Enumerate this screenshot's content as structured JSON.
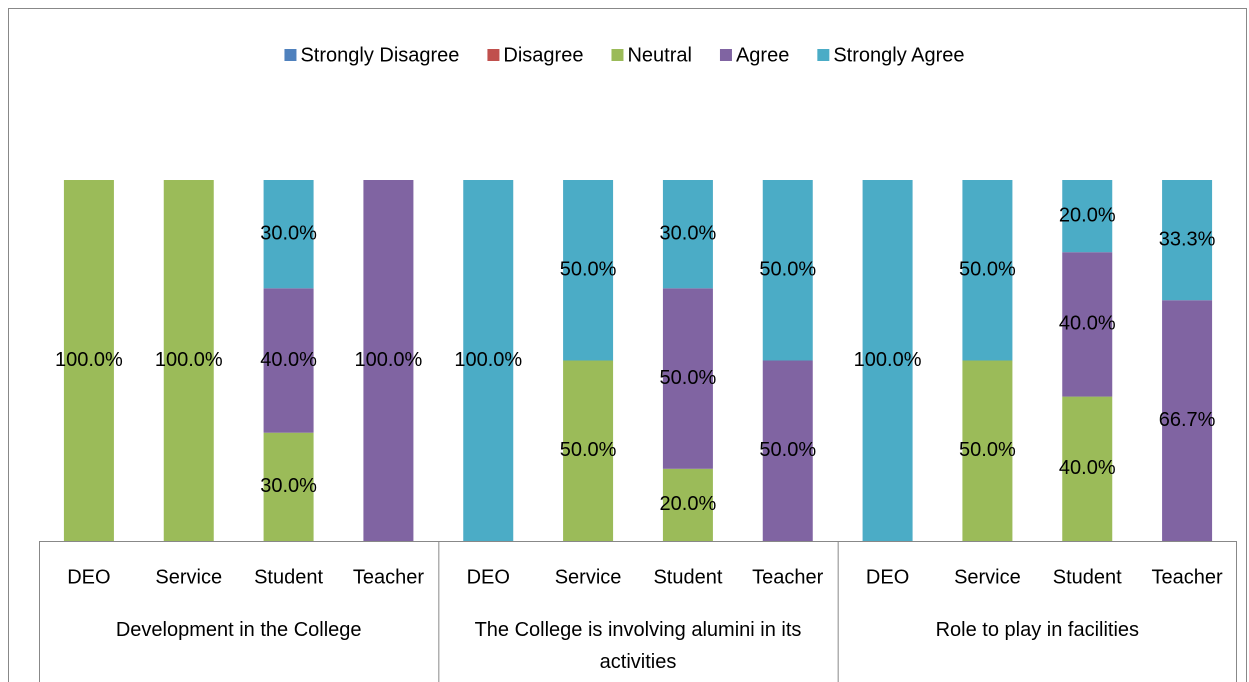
{
  "chart_data": {
    "type": "stacked_bar_100",
    "groups": [
      {
        "label": "Development in the College",
        "categories": [
          "DEO",
          "Service",
          "Student",
          "Teacher"
        ]
      },
      {
        "label": "The College is involving alumini in its activities",
        "categories": [
          "DEO",
          "Service",
          "Student",
          "Teacher"
        ]
      },
      {
        "label": "Role to play in facilities",
        "categories": [
          "DEO",
          "Service",
          "Student",
          "Teacher"
        ]
      }
    ],
    "ylim": [
      0,
      100
    ],
    "legend": "top",
    "series": [
      {
        "name": "Strongly Disagree",
        "color": "#4f81bd",
        "values": [
          0,
          0,
          0,
          0,
          0,
          0,
          0,
          0,
          0,
          0,
          0,
          0
        ],
        "value_labels": [
          null,
          null,
          null,
          null,
          null,
          null,
          null,
          null,
          null,
          null,
          null,
          null
        ]
      },
      {
        "name": "Disagree",
        "color": "#c0504d",
        "values": [
          0,
          0,
          0,
          0,
          0,
          0,
          0,
          0,
          0,
          0,
          0,
          0
        ],
        "value_labels": [
          null,
          null,
          null,
          null,
          null,
          null,
          null,
          null,
          null,
          null,
          null,
          null
        ]
      },
      {
        "name": "Neutral",
        "color": "#9bbb59",
        "values": [
          100,
          100,
          30,
          0,
          0,
          50,
          20,
          0,
          0,
          50,
          40,
          0
        ],
        "value_labels": [
          "100.0%",
          "100.0%",
          "30.0%",
          null,
          null,
          "50.0%",
          "20.0%",
          null,
          null,
          "50.0%",
          "40.0%",
          null
        ]
      },
      {
        "name": "Agree",
        "color": "#8064a2",
        "values": [
          0,
          0,
          40,
          100,
          0,
          0,
          50,
          50,
          0,
          0,
          40,
          66.7
        ],
        "value_labels": [
          null,
          null,
          "40.0%",
          "100.0%",
          null,
          null,
          "50.0%",
          "50.0%",
          null,
          null,
          "40.0%",
          "66.7%"
        ]
      },
      {
        "name": "Strongly Agree",
        "color": "#4bacc6",
        "values": [
          0,
          0,
          30,
          0,
          100,
          50,
          30,
          50,
          100,
          50,
          20,
          33.3
        ],
        "value_labels": [
          null,
          null,
          "30.0%",
          null,
          "100.0%",
          "50.0%",
          "30.0%",
          "50.0%",
          "100.0%",
          "50.0%",
          "20.0%",
          "33.3%"
        ]
      }
    ]
  }
}
